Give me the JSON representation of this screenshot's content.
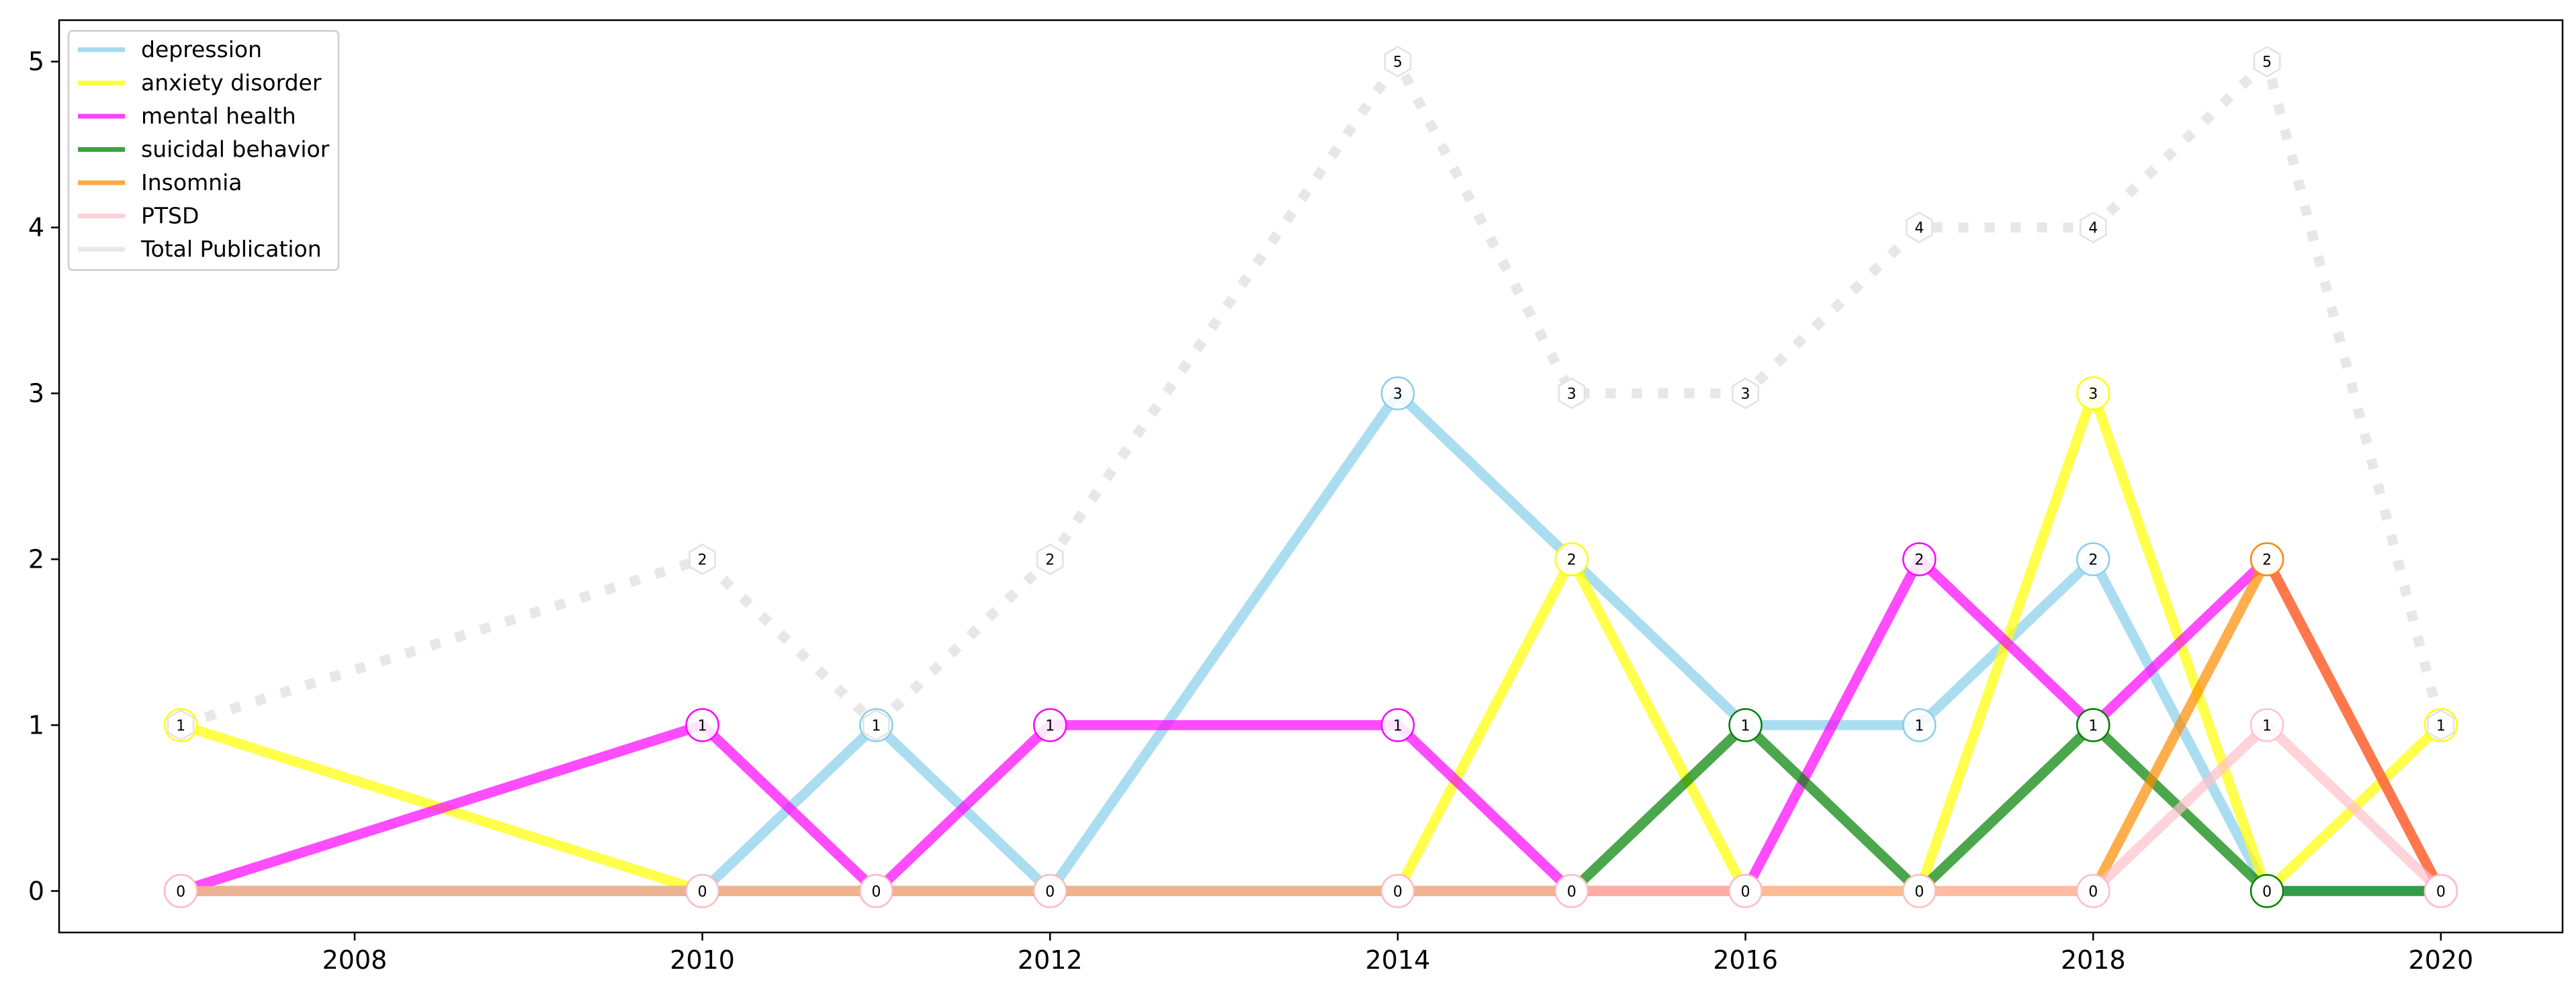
{
  "chart_data": {
    "type": "line",
    "title": "",
    "xlabel": "",
    "ylabel": "",
    "x": [
      2007,
      2010,
      2011,
      2012,
      2014,
      2015,
      2016,
      2017,
      2018,
      2019,
      2020
    ],
    "xlim": [
      2006.3,
      2020.7
    ],
    "ylim": [
      -0.25,
      5.25
    ],
    "xticks": [
      2008,
      2010,
      2012,
      2014,
      2016,
      2018,
      2020
    ],
    "yticks": [
      0,
      1,
      2,
      3,
      4,
      5
    ],
    "grid": false,
    "legend_position": "top-left",
    "series": [
      {
        "name": "Total Publication",
        "color": "#d3d3d3",
        "style": "dotted",
        "values": [
          1,
          2,
          1,
          2,
          5,
          3,
          3,
          4,
          4,
          5,
          1
        ]
      },
      {
        "name": "depression",
        "color": "#87ceeb",
        "style": "solid",
        "values": [
          0,
          0,
          1,
          0,
          3,
          2,
          1,
          1,
          2,
          0,
          0
        ]
      },
      {
        "name": "anxiety disorder",
        "color": "#ffff00",
        "style": "solid",
        "values": [
          1,
          0,
          0,
          0,
          0,
          2,
          0,
          0,
          3,
          0,
          1
        ]
      },
      {
        "name": "mental health",
        "color": "#ff00ff",
        "style": "solid",
        "values": [
          0,
          1,
          0,
          1,
          1,
          0,
          0,
          2,
          1,
          2,
          0
        ]
      },
      {
        "name": "suicidal behavior",
        "color": "#008000",
        "style": "solid",
        "values": [
          0,
          0,
          0,
          0,
          0,
          0,
          1,
          0,
          1,
          0,
          0
        ]
      },
      {
        "name": "Insomnia",
        "color": "#ff8c00",
        "style": "solid",
        "values": [
          0,
          0,
          0,
          0,
          0,
          0,
          0,
          0,
          0,
          2,
          0
        ]
      },
      {
        "name": "PTSD",
        "color": "#ffc0cb",
        "style": "solid",
        "values": [
          0,
          0,
          0,
          0,
          0,
          0,
          0,
          0,
          0,
          1,
          0
        ]
      }
    ]
  }
}
